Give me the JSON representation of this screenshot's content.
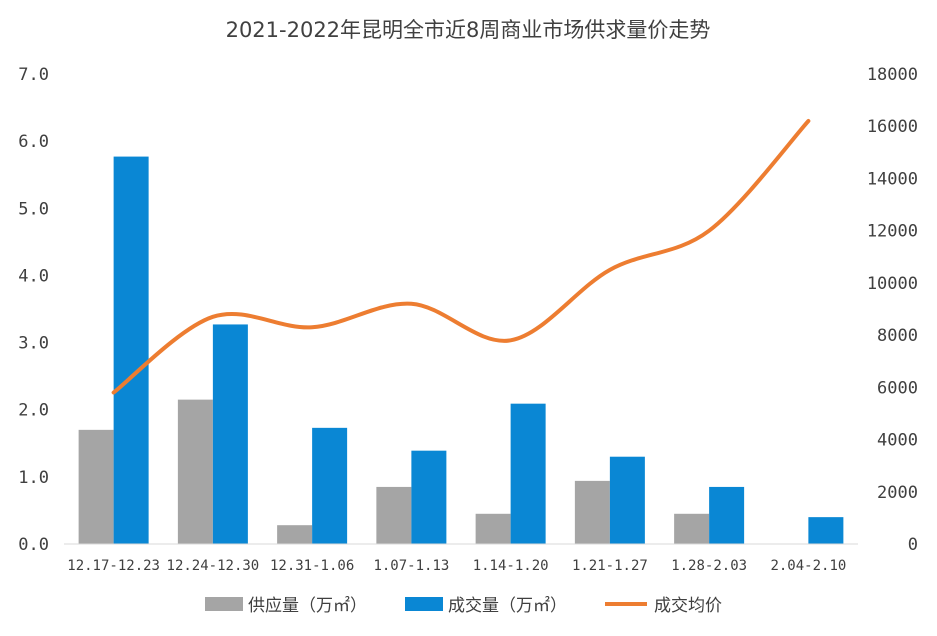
{
  "chart_data": {
    "type": "bar",
    "title": "2021-2022年昆明全市近8周商业市场供求量价走势",
    "categories": [
      "12.17-12.23",
      "12.24-12.30",
      "12.31-1.06",
      "1.07-1.13",
      "1.14-1.20",
      "1.21-1.27",
      "1.28-2.03",
      "2.04-2.10"
    ],
    "y_left": {
      "ylim": [
        0,
        7.0
      ],
      "ticks": [
        "0.0",
        "1.0",
        "2.0",
        "3.0",
        "4.0",
        "5.0",
        "6.0",
        "7.0"
      ]
    },
    "y_right": {
      "ylim": [
        0,
        18000
      ],
      "ticks": [
        "0",
        "2000",
        "4000",
        "6000",
        "8000",
        "10000",
        "12000",
        "14000",
        "16000",
        "18000"
      ]
    },
    "series": [
      {
        "name": "供应量（万㎡）",
        "type": "bar",
        "axis": "left",
        "color": "#A5A5A5",
        "values": [
          1.7,
          2.15,
          0.28,
          0.85,
          0.45,
          0.94,
          0.45,
          0.0
        ]
      },
      {
        "name": "成交量（万㎡）",
        "type": "bar",
        "axis": "left",
        "color": "#0A87D4",
        "values": [
          5.77,
          3.27,
          1.73,
          1.39,
          2.09,
          1.3,
          0.85,
          0.4
        ]
      },
      {
        "name": "成交均价",
        "type": "line",
        "axis": "right",
        "color": "#ED7D31",
        "values": [
          5800,
          8700,
          8300,
          9200,
          7800,
          10500,
          12000,
          16200
        ]
      }
    ],
    "legend_position": "bottom",
    "grid": false
  }
}
